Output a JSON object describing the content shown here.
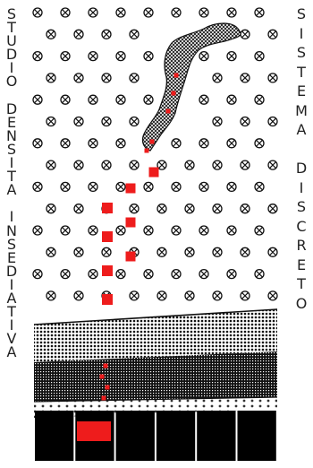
{
  "left_caption": "STUDIO DENSITA INSEDIATIVA",
  "right_caption": "SISTEMA DISCRETO",
  "colors": {
    "background": "#ffffff",
    "ink": "#111111",
    "accent": "#ee1c1c"
  },
  "icons": {
    "dot_symbol": "circle-x-icon"
  }
}
